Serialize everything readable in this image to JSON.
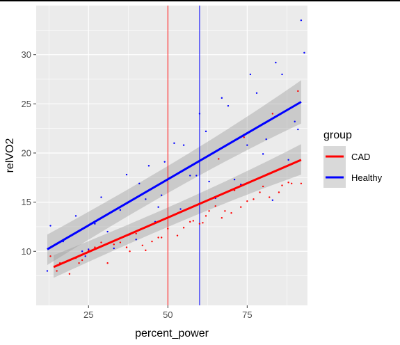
{
  "chart_data": {
    "type": "scatter",
    "title": "",
    "xlabel": "percent_power",
    "ylabel": "relVO2",
    "xlim": [
      8.5,
      94
    ],
    "ylim": [
      4.5,
      35
    ],
    "xticks": [
      25,
      50,
      75
    ],
    "yticks": [
      10,
      15,
      20,
      25,
      30
    ],
    "grid": true,
    "legend": {
      "title": "group",
      "position": "right",
      "entries": [
        {
          "label": "CAD",
          "color": "#ff0000"
        },
        {
          "label": "Healthy",
          "color": "#0000ff"
        }
      ]
    },
    "vlines": [
      {
        "x": 50,
        "color": "#ff0000"
      },
      {
        "x": 60,
        "color": "#0000ff"
      }
    ],
    "series": [
      {
        "name": "CAD",
        "color": "#ff0000",
        "points": [
          [
            13,
            9.5
          ],
          [
            15,
            8.0
          ],
          [
            16,
            8.8
          ],
          [
            19,
            7.7
          ],
          [
            21,
            9.3
          ],
          [
            22,
            8.8
          ],
          [
            23,
            9.1
          ],
          [
            25,
            10.1
          ],
          [
            27,
            10.4
          ],
          [
            29,
            10.9
          ],
          [
            31,
            8.8
          ],
          [
            33,
            10.7
          ],
          [
            35,
            10.9
          ],
          [
            37,
            10.4
          ],
          [
            38,
            10.0
          ],
          [
            40,
            11.8
          ],
          [
            42,
            10.6
          ],
          [
            43,
            10.1
          ],
          [
            45,
            11.0
          ],
          [
            47,
            11.4
          ],
          [
            48,
            11.4
          ],
          [
            50,
            12.3
          ],
          [
            53,
            11.6
          ],
          [
            55,
            12.4
          ],
          [
            57,
            13.0
          ],
          [
            58,
            13.1
          ],
          [
            60,
            12.8
          ],
          [
            61,
            12.9
          ],
          [
            62,
            13.6
          ],
          [
            63,
            14.1
          ],
          [
            65,
            14.6
          ],
          [
            66,
            19.4
          ],
          [
            67,
            13.4
          ],
          [
            68,
            14.1
          ],
          [
            70,
            13.9
          ],
          [
            71,
            16.2
          ],
          [
            73,
            14.5
          ],
          [
            74,
            21.6
          ],
          [
            75,
            15.1
          ],
          [
            77,
            15.3
          ],
          [
            79,
            16.0
          ],
          [
            80,
            16.6
          ],
          [
            82,
            15.5
          ],
          [
            83,
            24.0
          ],
          [
            85,
            16.0
          ],
          [
            86,
            16.7
          ],
          [
            88,
            17.0
          ],
          [
            89,
            16.9
          ],
          [
            91,
            26.3
          ],
          [
            92,
            16.9
          ]
        ],
        "fit": {
          "x": [
            14,
            92
          ],
          "y": [
            8.4,
            19.3
          ],
          "se_low": [
            7.3,
            17.8
          ],
          "se_high": [
            9.6,
            20.9
          ]
        }
      },
      {
        "name": "Healthy",
        "color": "#0000ff",
        "points": [
          [
            12,
            8.0
          ],
          [
            13,
            12.6
          ],
          [
            17,
            11.0
          ],
          [
            21,
            13.6
          ],
          [
            23,
            10.0
          ],
          [
            24,
            9.5
          ],
          [
            25,
            10.2
          ],
          [
            27,
            12.8
          ],
          [
            29,
            15.5
          ],
          [
            31,
            12.0
          ],
          [
            33,
            10.3
          ],
          [
            35,
            14.2
          ],
          [
            37,
            17.8
          ],
          [
            38,
            11.7
          ],
          [
            40,
            11.2
          ],
          [
            41,
            16.9
          ],
          [
            43,
            15.3
          ],
          [
            44,
            18.7
          ],
          [
            46,
            13.0
          ],
          [
            47,
            14.5
          ],
          [
            48,
            15.7
          ],
          [
            49,
            19.1
          ],
          [
            52,
            21.0
          ],
          [
            54,
            14.3
          ],
          [
            55,
            20.8
          ],
          [
            57,
            17.7
          ],
          [
            59,
            17.7
          ],
          [
            60,
            24.0
          ],
          [
            62,
            22.2
          ],
          [
            63,
            17.1
          ],
          [
            65,
            15.4
          ],
          [
            67,
            25.6
          ],
          [
            69,
            24.8
          ],
          [
            71,
            17.3
          ],
          [
            73,
            16.8
          ],
          [
            75,
            20.8
          ],
          [
            76,
            28.0
          ],
          [
            78,
            26.1
          ],
          [
            80,
            19.9
          ],
          [
            81,
            21.4
          ],
          [
            83,
            15.2
          ],
          [
            84,
            29.2
          ],
          [
            86,
            28.0
          ],
          [
            88,
            19.3
          ],
          [
            90,
            23.2
          ],
          [
            91,
            22.4
          ],
          [
            92,
            33.5
          ],
          [
            93,
            30.2
          ]
        ],
        "fit": {
          "x": [
            12,
            92
          ],
          "y": [
            10.2,
            25.2
          ],
          "se_low": [
            8.6,
            23.0
          ],
          "se_high": [
            11.7,
            27.4
          ]
        }
      }
    ]
  }
}
